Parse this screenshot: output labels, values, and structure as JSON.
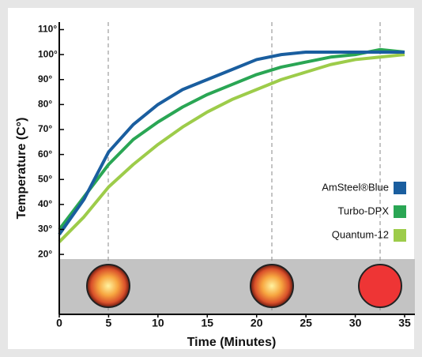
{
  "chart_data": {
    "type": "line",
    "x_label": "Time (Minutes)",
    "y_label": "Temperature (C°)",
    "x": [
      0,
      2.5,
      5,
      7.5,
      10,
      12.5,
      15,
      17.5,
      20,
      22.5,
      25,
      27.5,
      30,
      32.5,
      35
    ],
    "series": [
      {
        "name": "AmSteel®Blue",
        "color": "#1a5e9f",
        "values": [
          28,
          42,
          61,
          72,
          80,
          86,
          90,
          94,
          98,
          100,
          101,
          101,
          101,
          101,
          101
        ]
      },
      {
        "name": "Turbo-DPX",
        "color": "#2aa654",
        "values": [
          30,
          43,
          56,
          66,
          73,
          79,
          84,
          88,
          92,
          95,
          97,
          99,
          100,
          102,
          101
        ]
      },
      {
        "name": "Quantum-12",
        "color": "#9dcc4a",
        "values": [
          25,
          35,
          47,
          56,
          64,
          71,
          77,
          82,
          86,
          90,
          93,
          96,
          98,
          99,
          100
        ]
      }
    ],
    "xlim": [
      0,
      35
    ],
    "xticks": [
      0,
      5,
      10,
      15,
      20,
      25,
      30,
      35
    ],
    "ylim": [
      -4,
      113
    ],
    "yticks": [
      {
        "value": 20,
        "label": "20°"
      },
      {
        "value": 30,
        "label": "30°"
      },
      {
        "value": 40,
        "label": "40°"
      },
      {
        "value": 50,
        "label": "50°"
      },
      {
        "value": 60,
        "label": "60°"
      },
      {
        "value": 70,
        "label": "70°"
      },
      {
        "value": 80,
        "label": "80°"
      },
      {
        "value": 90,
        "label": "90°"
      },
      {
        "value": 100,
        "label": "100°"
      },
      {
        "value": 110,
        "label": "110°"
      }
    ],
    "legend": "right"
  }
}
